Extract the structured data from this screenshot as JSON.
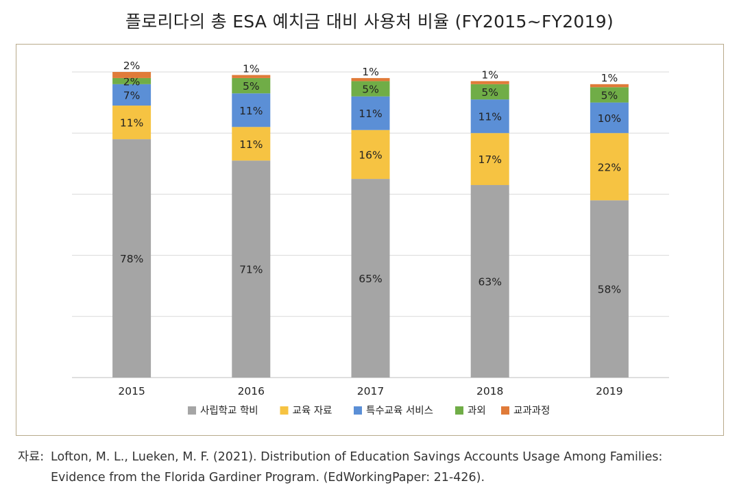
{
  "title": "플로리다의 총 ESA 예치금 대비 사용처 비율 (FY2015~FY2019)",
  "source": {
    "label": "자료:",
    "line1": "Lofton, M. L., Lueken, M. F. (2021). Distribution of Education Savings Accounts Usage Among Families:",
    "line2": "Evidence from the Florida Gardiner Program. (EdWorkingPaper: 21-426)."
  },
  "chart_data": {
    "type": "bar",
    "stacked": true,
    "categories": [
      "2015",
      "2016",
      "2017",
      "2018",
      "2019"
    ],
    "series": [
      {
        "name": "사립학교 학비",
        "color": "#a5a5a5",
        "values": [
          78,
          71,
          65,
          63,
          58
        ],
        "labels": [
          "78%",
          "71%",
          "65%",
          "63%",
          "58%"
        ]
      },
      {
        "name": "교육 자료",
        "color": "#f6c342",
        "values": [
          11,
          11,
          16,
          17,
          22
        ],
        "labels": [
          "11%",
          "11%",
          "16%",
          "17%",
          "22%"
        ]
      },
      {
        "name": "특수교육 서비스",
        "color": "#5b8fd6",
        "values": [
          7,
          11,
          11,
          11,
          10
        ],
        "labels": [
          "7%",
          "11%",
          "11%",
          "11%",
          "10%"
        ]
      },
      {
        "name": "과외",
        "color": "#70ad47",
        "values": [
          2,
          5,
          5,
          5,
          5
        ],
        "labels": [
          "2%",
          "5%",
          "5%",
          "5%",
          "5%"
        ]
      },
      {
        "name": "교과과정",
        "color": "#e07b39",
        "values": [
          2,
          1,
          1,
          1,
          1
        ],
        "labels": [
          "2%",
          "1%",
          "1%",
          "1%",
          "1%"
        ]
      }
    ],
    "ylim": [
      0,
      100
    ],
    "grid": true,
    "legend_position": "bottom"
  }
}
